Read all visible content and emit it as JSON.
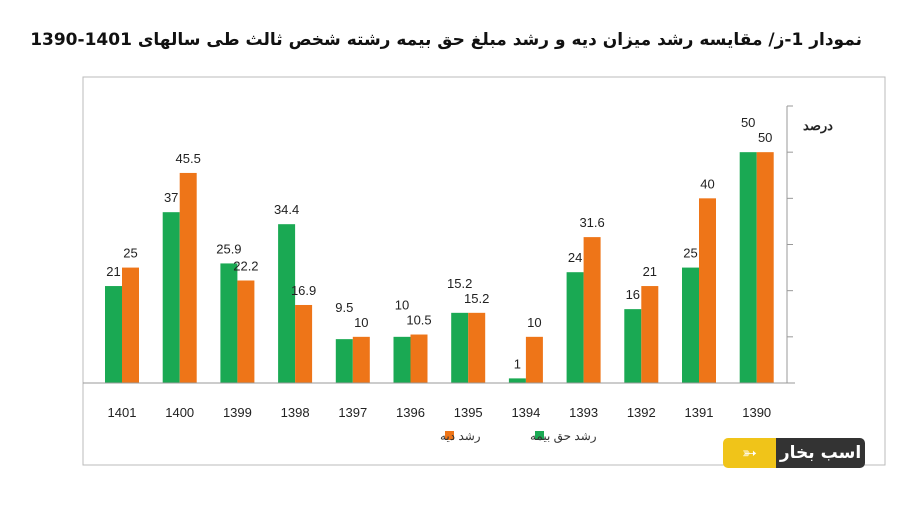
{
  "chart_data": {
    "type": "bar",
    "title": "نمودار 1-ز/ مقایسه رشد میزان دیه و رشد مبلغ حق بیمه رشته شخص ثالث طی سالهای 1401-1390",
    "ylabel": "درصد",
    "xlabel": "",
    "ylim": [
      0,
      60
    ],
    "yticks": [
      0,
      10,
      20,
      30,
      40,
      50,
      60
    ],
    "y_axis_side": "right",
    "grid": false,
    "legend_position": "bottom",
    "categories": [
      "1401",
      "1400",
      "1399",
      "1398",
      "1397",
      "1396",
      "1395",
      "1394",
      "1393",
      "1392",
      "1391",
      "1390"
    ],
    "series": [
      {
        "name": "رشد حق بیمه",
        "color": "#1aa953",
        "values": [
          21,
          37,
          25.9,
          34.4,
          9.5,
          10,
          15.2,
          1,
          24,
          16,
          25,
          50
        ]
      },
      {
        "name": "رشد دیه",
        "color": "#ee7518",
        "values": [
          25,
          45.5,
          22.2,
          16.9,
          10,
          10.5,
          15.2,
          10,
          31.6,
          21,
          40,
          50
        ]
      }
    ]
  },
  "logo": {
    "text": "اسب بخار",
    "colors": {
      "yellow": "#f0c419",
      "dark": "#333333"
    }
  }
}
